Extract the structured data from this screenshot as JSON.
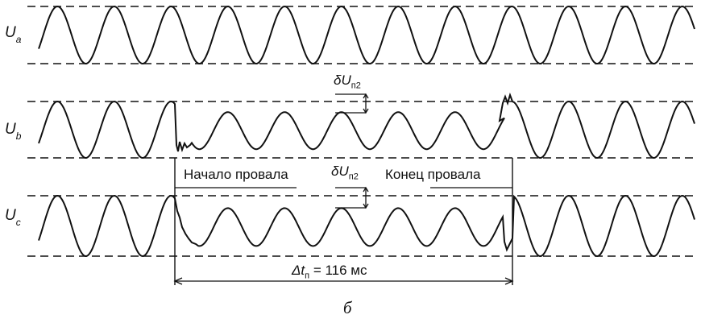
{
  "channels": [
    {
      "id": "a",
      "symbol": "U",
      "subscript": "a"
    },
    {
      "id": "b",
      "symbol": "U",
      "subscript": "b"
    },
    {
      "id": "c",
      "symbol": "U",
      "subscript": "c"
    }
  ],
  "annotations": {
    "dip_start": "Начало провала",
    "dip_end": "Конец провала",
    "delta_symbol": "δU",
    "delta_subscript": "п2",
    "duration_symbol": "Δt",
    "duration_subscript": "п",
    "duration_value": " = 116 мс"
  },
  "caption": "б",
  "colors": {
    "ink": "#111111",
    "background": "#ffffff"
  }
}
